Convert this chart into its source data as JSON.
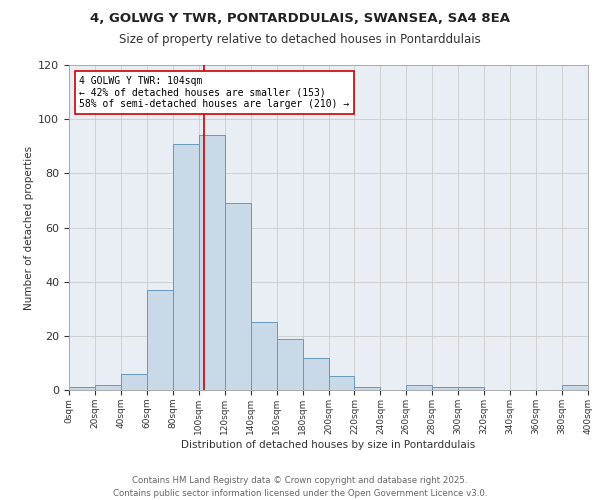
{
  "title1": "4, GOLWG Y TWR, PONTARDDULAIS, SWANSEA, SA4 8EA",
  "title2": "Size of property relative to detached houses in Pontarddulais",
  "xlabel": "Distribution of detached houses by size in Pontarddulais",
  "ylabel": "Number of detached properties",
  "bin_edges": [
    0,
    20,
    40,
    60,
    80,
    100,
    120,
    140,
    160,
    180,
    200,
    220,
    240,
    260,
    280,
    300,
    320,
    340,
    360,
    380,
    400
  ],
  "counts": [
    1,
    2,
    6,
    37,
    91,
    94,
    69,
    25,
    19,
    12,
    5,
    1,
    0,
    2,
    1,
    1,
    0,
    0,
    0,
    2
  ],
  "bar_color": "#c9d9e8",
  "bar_edge_color": "#6699bb",
  "reference_line_x": 104,
  "annotation_text": "4 GOLWG Y TWR: 104sqm\n← 42% of detached houses are smaller (153)\n58% of semi-detached houses are larger (210) →",
  "annotation_box_color": "#ffffff",
  "annotation_box_edge_color": "#cc0000",
  "ref_line_color": "#cc0000",
  "grid_color": "#cccccc",
  "background_color": "#e8eef4",
  "footer_text": "Contains HM Land Registry data © Crown copyright and database right 2025.\nContains public sector information licensed under the Open Government Licence v3.0.",
  "ylim": [
    0,
    120
  ],
  "tick_labels": [
    "0sqm",
    "20sqm",
    "40sqm",
    "60sqm",
    "80sqm",
    "100sqm",
    "120sqm",
    "140sqm",
    "160sqm",
    "180sqm",
    "200sqm",
    "220sqm",
    "240sqm",
    "260sqm",
    "280sqm",
    "300sqm",
    "320sqm",
    "340sqm",
    "360sqm",
    "380sqm",
    "400sqm"
  ]
}
